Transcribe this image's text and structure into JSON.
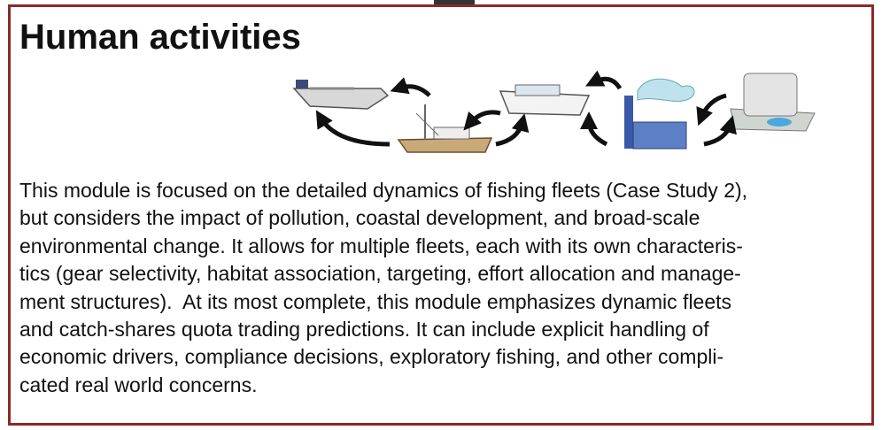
{
  "header": {
    "title": "Human activities"
  },
  "body": {
    "lines": [
      "This module is focused on the detailed dynamics of fishing fleets (Case Study 2),",
      "but considers the impact of pollution, coastal development, and broad-scale",
      "environmental change. It allows for multiple fleets, each with its own characteris-",
      "tics (gear selectivity, habitat association, targeting, effort allocation and manage-",
      "ment structures).  At its most complete, this module emphasizes dynamic fleets",
      "and catch-shares quota trading predictions. It can include explicit handling of",
      "economic drivers, compliance decisions, exploratory fishing, and other compli-",
      "cated real world concerns."
    ]
  }
}
